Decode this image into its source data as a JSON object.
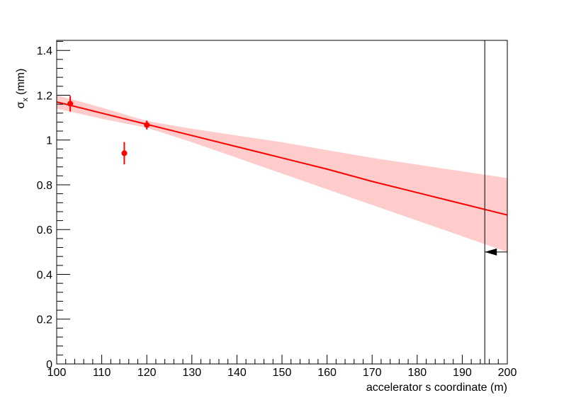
{
  "chart_data": {
    "type": "scatter",
    "xlabel": "accelerator s coordinate (m)",
    "ylabel": {
      "symbol": "σ",
      "subscript": "x",
      "unit": "(mm)"
    },
    "xlim": [
      100,
      200
    ],
    "ylim": [
      0,
      1.445
    ],
    "xticks": [
      100,
      110,
      120,
      130,
      140,
      150,
      160,
      170,
      180,
      190,
      200
    ],
    "yticks": [
      0,
      0.2,
      0.4,
      0.6,
      0.8,
      1,
      1.2,
      1.4
    ],
    "color": "#ff0000",
    "band_color": "#ffcccc",
    "points": {
      "x": [
        103,
        115,
        120
      ],
      "values": [
        1.162,
        0.941,
        1.067
      ],
      "errors": [
        0.035,
        0.05,
        0.02
      ]
    },
    "fit": {
      "x": [
        100,
        110,
        120,
        130,
        140,
        150,
        160,
        170,
        180,
        190,
        200
      ],
      "values": [
        1.17,
        1.12,
        1.07,
        1.02,
        0.97,
        0.92,
        0.87,
        0.815,
        0.765,
        0.715,
        0.665
      ],
      "lower": [
        1.14,
        1.095,
        1.055,
        0.99,
        0.92,
        0.85,
        0.78,
        0.71,
        0.64,
        0.57,
        0.5
      ],
      "upper": [
        1.2,
        1.145,
        1.085,
        1.05,
        1.02,
        0.99,
        0.955,
        0.92,
        0.89,
        0.86,
        0.83
      ]
    },
    "marker_line_x": 195,
    "arrow_y": 0.5
  }
}
